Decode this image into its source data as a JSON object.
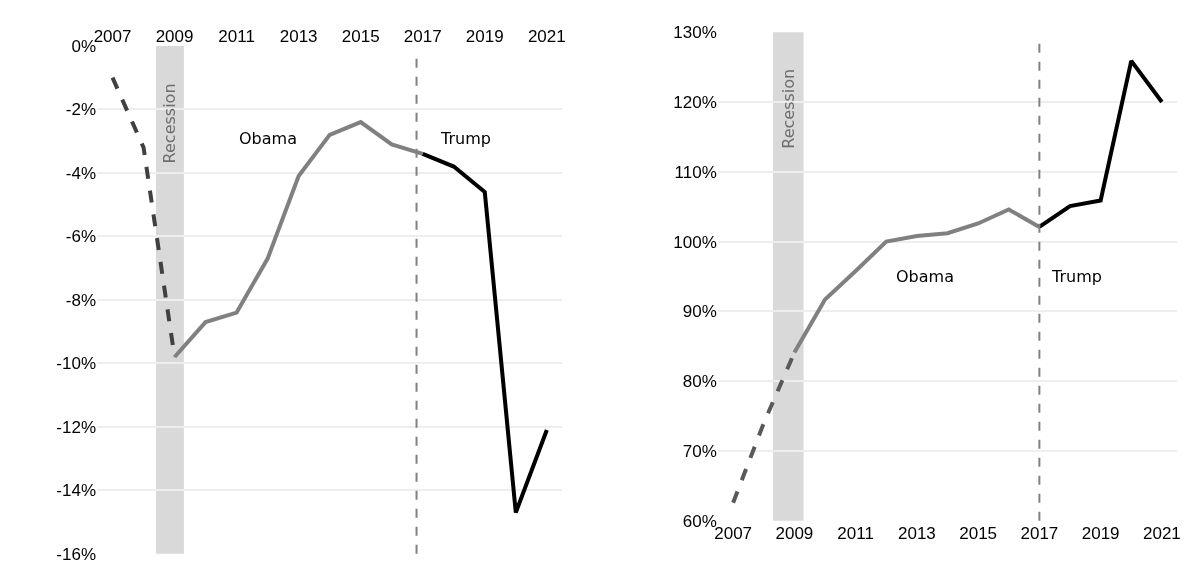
{
  "chart_data": [
    {
      "type": "line",
      "xlim": [
        2006.5,
        2021.5
      ],
      "xticks": [
        2007,
        2009,
        2011,
        2013,
        2015,
        2017,
        2019,
        2021
      ],
      "ylim": [
        -16,
        0
      ],
      "yticks": [
        {
          "value": 0,
          "label": "0%"
        },
        {
          "value": -2,
          "label": "-2%"
        },
        {
          "value": -4,
          "label": "-4%"
        },
        {
          "value": -6,
          "label": "-6%"
        },
        {
          "value": -8,
          "label": "-8%"
        },
        {
          "value": -10,
          "label": "-10%"
        },
        {
          "value": -12,
          "label": "-12%"
        },
        {
          "value": -14,
          "label": "-14%"
        },
        {
          "value": -16,
          "label": "-16%"
        }
      ],
      "grid": "y",
      "marker": "none",
      "series": [
        {
          "color": "#404040",
          "line_style": "dashed",
          "x": [
            2007,
            2008,
            2009
          ],
          "values": [
            -1.0,
            -3.2,
            -9.8
          ]
        },
        {
          "color": "#808080",
          "line_style": "solid",
          "x": [
            2009,
            2010,
            2011,
            2012,
            2013,
            2014,
            2015,
            2016,
            2017
          ],
          "values": [
            -9.8,
            -8.7,
            -8.4,
            -6.7,
            -4.1,
            -2.8,
            -2.4,
            -3.1,
            -3.4
          ]
        },
        {
          "color": "#000000",
          "line_style": "solid",
          "x": [
            2017,
            2018,
            2019,
            2020,
            2021
          ],
          "values": [
            -3.4,
            -3.8,
            -4.6,
            -14.7,
            -12.1
          ]
        }
      ],
      "bands": [
        {
          "axis": "x",
          "from": 2008.4,
          "to": 2009.3,
          "label": "Recession",
          "color": "#d9d9d9"
        }
      ],
      "ref_lines": [
        {
          "axis": "x",
          "value": 2016.8,
          "color": "#808080",
          "line_style": "dashed"
        }
      ],
      "annotations": [
        "Obama",
        "Trump"
      ]
    },
    {
      "type": "line",
      "xlim": [
        2006.5,
        2021.5
      ],
      "xticks": [
        2007,
        2009,
        2011,
        2013,
        2015,
        2017,
        2019,
        2021
      ],
      "ylim": [
        60,
        130
      ],
      "yticks": [
        {
          "value": 60,
          "label": "60%"
        },
        {
          "value": 70,
          "label": "70%"
        },
        {
          "value": 80,
          "label": "80%"
        },
        {
          "value": 90,
          "label": "90%"
        },
        {
          "value": 100,
          "label": "100%"
        },
        {
          "value": 110,
          "label": "110%"
        },
        {
          "value": 120,
          "label": "120%"
        },
        {
          "value": 130,
          "label": "130%"
        }
      ],
      "grid": "y",
      "marker": "none",
      "series": [
        {
          "color": "#595959",
          "line_style": "dashed",
          "x": [
            2007,
            2008,
            2009
          ],
          "values": [
            62.6,
            74,
            84.1
          ]
        },
        {
          "color": "#808080",
          "line_style": "solid",
          "x": [
            2009,
            2010,
            2011,
            2012,
            2013,
            2014,
            2015,
            2016,
            2017
          ],
          "values": [
            84.1,
            91.7,
            95.8,
            100.0,
            100.8,
            101.2,
            102.6,
            104.6,
            102.1
          ]
        },
        {
          "color": "#000000",
          "line_style": "solid",
          "x": [
            2017,
            2018,
            2019,
            2020,
            2021
          ],
          "values": [
            102.1,
            105.1,
            105.9,
            125.9,
            120.0
          ]
        }
      ],
      "bands": [
        {
          "axis": "x",
          "from": 2008.3,
          "to": 2009.3,
          "label": "Recession",
          "color": "#d9d9d9"
        }
      ],
      "ref_lines": [
        {
          "axis": "x",
          "value": 2017,
          "color": "#808080",
          "line_style": "dashed"
        }
      ],
      "annotations": [
        "Obama",
        "Trump"
      ]
    }
  ]
}
